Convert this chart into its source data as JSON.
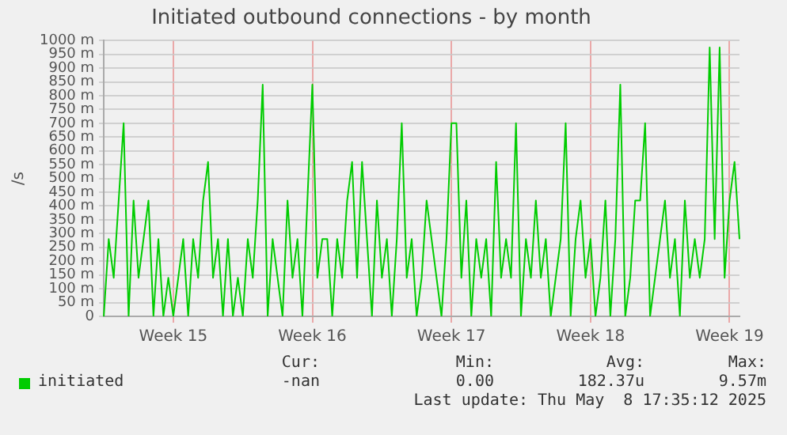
{
  "chart_data": {
    "type": "line",
    "title": "Initiated outbound connections - by month",
    "ylabel": "/s",
    "categories": [
      null,
      null,
      null,
      null,
      null,
      null,
      null,
      null,
      null,
      null,
      null,
      null,
      null,
      null,
      "Week 15",
      null,
      null,
      null,
      null,
      null,
      null,
      null,
      null,
      null,
      null,
      null,
      null,
      null,
      null,
      null,
      null,
      null,
      null,
      null,
      null,
      null,
      null,
      null,
      null,
      null,
      null,
      null,
      "Week 16",
      null,
      null,
      null,
      null,
      null,
      null,
      null,
      null,
      null,
      null,
      null,
      null,
      null,
      null,
      null,
      null,
      null,
      null,
      null,
      null,
      null,
      null,
      null,
      null,
      null,
      null,
      null,
      "Week 17",
      null,
      null,
      null,
      null,
      null,
      null,
      null,
      null,
      null,
      null,
      null,
      null,
      null,
      null,
      null,
      null,
      null,
      null,
      null,
      null,
      null,
      null,
      null,
      null,
      null,
      null,
      null,
      "Week 18",
      null,
      null,
      null,
      null,
      null,
      null,
      null,
      null,
      null,
      null,
      null,
      null,
      null,
      null,
      null,
      null,
      null,
      null,
      null,
      null,
      null,
      null,
      null,
      null,
      null,
      null,
      null,
      "Week 19",
      null,
      null
    ],
    "series": [
      {
        "name": "initiated",
        "color": "#00cc00",
        "values": [
          0,
          280,
          140,
          420,
          700,
          0,
          420,
          140,
          280,
          420,
          0,
          280,
          0,
          140,
          0,
          140,
          280,
          0,
          280,
          140,
          420,
          560,
          140,
          280,
          0,
          280,
          0,
          140,
          0,
          280,
          140,
          420,
          840,
          0,
          280,
          140,
          0,
          420,
          140,
          280,
          0,
          420,
          840,
          140,
          280,
          280,
          0,
          280,
          140,
          420,
          560,
          140,
          560,
          280,
          0,
          420,
          140,
          280,
          0,
          280,
          700,
          140,
          280,
          0,
          140,
          420,
          280,
          140,
          0,
          280,
          700,
          700,
          140,
          420,
          0,
          280,
          140,
          280,
          0,
          560,
          140,
          280,
          140,
          700,
          0,
          280,
          140,
          420,
          140,
          280,
          0,
          140,
          280,
          700,
          0,
          280,
          420,
          140,
          280,
          0,
          140,
          420,
          0,
          280,
          840,
          0,
          140,
          420,
          420,
          700,
          0,
          140,
          280,
          420,
          140,
          280,
          0,
          420,
          140,
          280,
          140,
          280,
          975,
          280,
          975,
          140,
          420,
          560,
          280
        ]
      }
    ],
    "ylim": [
      0,
      1000
    ],
    "yticks": [
      0,
      {
        "value": 50,
        "label": "50 m"
      },
      {
        "value": 100,
        "label": "100 m"
      },
      {
        "value": 150,
        "label": "150 m"
      },
      {
        "value": 200,
        "label": "200 m"
      },
      {
        "value": 250,
        "label": "250 m"
      },
      {
        "value": 300,
        "label": "300 m"
      },
      {
        "value": 350,
        "label": "350 m"
      },
      {
        "value": 400,
        "label": "400 m"
      },
      {
        "value": 450,
        "label": "450 m"
      },
      {
        "value": 500,
        "label": "500 m"
      },
      {
        "value": 550,
        "label": "550 m"
      },
      {
        "value": 600,
        "label": "600 m"
      },
      {
        "value": 650,
        "label": "650 m"
      },
      {
        "value": 700,
        "label": "700 m"
      },
      {
        "value": 750,
        "label": "750 m"
      },
      {
        "value": 800,
        "label": "800 m"
      },
      {
        "value": 850,
        "label": "850 m"
      },
      {
        "value": 900,
        "label": "900 m"
      },
      {
        "value": 950,
        "label": "950 m"
      },
      {
        "value": 1000,
        "label": "1000 m"
      }
    ],
    "grid": true,
    "legend": "bottom left",
    "marker": "none",
    "line_style": "solid",
    "annotations": [
      "Cur:",
      "Min:",
      "Avg:",
      "Max:",
      "-nan",
      "0.00",
      "182.37u",
      "9.57m",
      "Last update: Thu May  8 17:35:12 2025"
    ]
  }
}
